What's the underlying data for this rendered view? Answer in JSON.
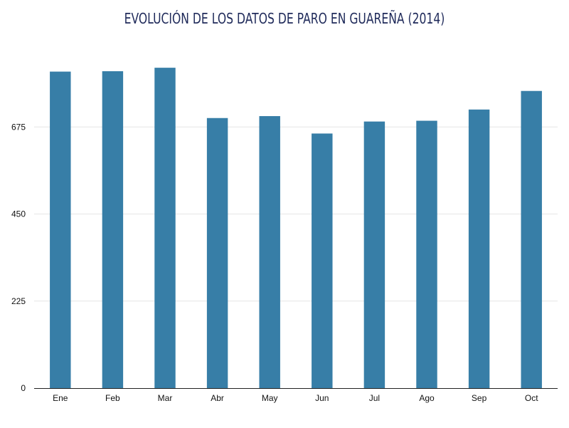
{
  "chart_data": {
    "type": "bar",
    "title": "EVOLUCIÓN DE LOS DATOS DE PARO EN GUAREÑA (2014)",
    "xlabel": "",
    "ylabel": "",
    "categories": [
      "Ene",
      "Feb",
      "Mar",
      "Abr",
      "May",
      "Jun",
      "Jul",
      "Ago",
      "Sep",
      "Oct"
    ],
    "values": [
      818,
      819,
      828,
      698,
      703,
      658,
      689,
      691,
      720,
      768
    ],
    "ylim": [
      0,
      900
    ],
    "yticks": [
      0,
      225,
      450,
      675
    ],
    "grid": true,
    "legend": "none",
    "colors": {
      "bar": "#377ea7",
      "grid": "#e6e6e6",
      "axis": "#222222",
      "title": "#1f2a5a"
    }
  }
}
